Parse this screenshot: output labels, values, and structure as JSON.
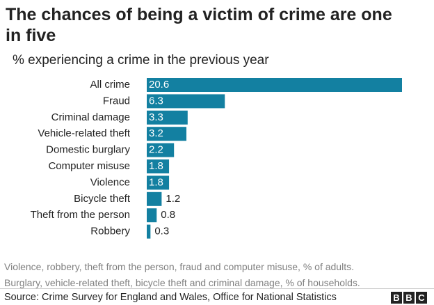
{
  "chart_data": {
    "type": "bar",
    "orientation": "horizontal",
    "title": "The chances of being a victim of crime are one in five",
    "subtitle": "% experiencing a crime in the previous year",
    "categories": [
      "All crime",
      "Fraud",
      "Criminal damage",
      "Vehicle-related theft",
      "Domestic burglary",
      "Computer misuse",
      "Violence",
      "Bicycle theft",
      "Theft from the person",
      "Robbery"
    ],
    "values": [
      20.6,
      6.3,
      3.3,
      3.2,
      2.2,
      1.8,
      1.8,
      1.2,
      0.8,
      0.3
    ],
    "color": "#1380a1",
    "notes": [
      "Violence, robbery, theft from the person, fraud and computer misuse, % of adults.",
      "Burglary, vehicle-related theft, bicycle theft and criminal damage, % of households."
    ],
    "source": "Source: Crime Survey for England and Wales, Office for National Statistics",
    "logo": [
      "B",
      "B",
      "C"
    ]
  }
}
